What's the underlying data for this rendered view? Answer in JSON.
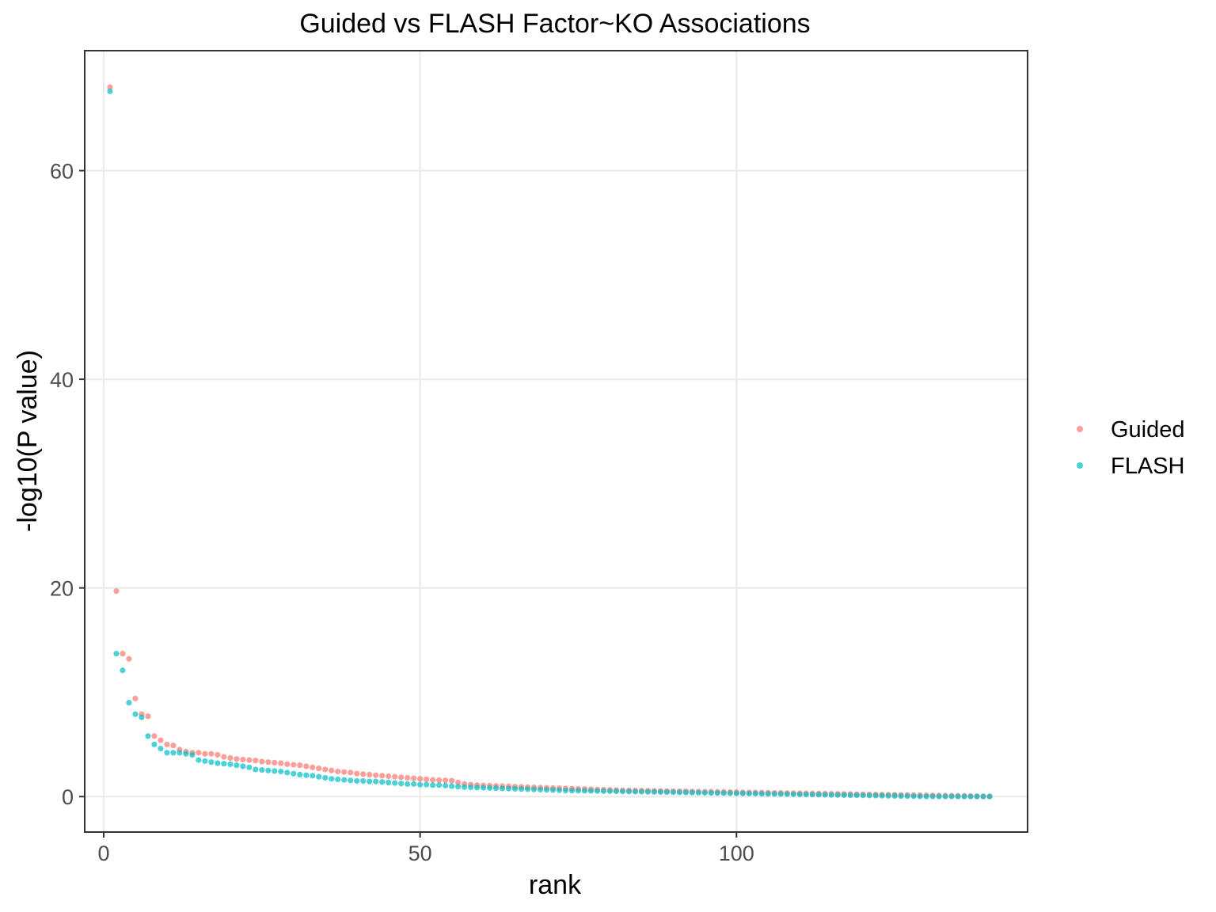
{
  "chart_data": {
    "type": "scatter",
    "title": "Guided vs FLASH Factor~KO Associations",
    "xlabel": "rank",
    "ylabel": "-log10(P value)",
    "xlim": [
      -3,
      146
    ],
    "ylim": [
      -3.4,
      71.5
    ],
    "x_ticks": [
      0,
      50,
      100
    ],
    "y_ticks": [
      0,
      20,
      40,
      60
    ],
    "x_tick_labels": [
      "0",
      "50",
      "100"
    ],
    "y_tick_labels": [
      "0",
      "20",
      "40",
      "60"
    ],
    "grid": true,
    "legend_position": "right",
    "series": [
      {
        "name": "Guided",
        "color": "#F8766D",
        "x": [
          1,
          2,
          3,
          4,
          5,
          6,
          7,
          8,
          9,
          10,
          11,
          12,
          13,
          14,
          15,
          16,
          17,
          18,
          19,
          20,
          21,
          22,
          23,
          24,
          25,
          26,
          27,
          28,
          29,
          30,
          31,
          32,
          33,
          34,
          35,
          36,
          37,
          38,
          39,
          40,
          41,
          42,
          43,
          44,
          45,
          46,
          47,
          48,
          49,
          50,
          51,
          52,
          53,
          54,
          55,
          56,
          57,
          58,
          59,
          60,
          61,
          62,
          63,
          64,
          65,
          66,
          67,
          68,
          69,
          70,
          71,
          72,
          73,
          74,
          75,
          76,
          77,
          78,
          79,
          80,
          81,
          82,
          83,
          84,
          85,
          86,
          87,
          88,
          89,
          90,
          91,
          92,
          93,
          94,
          95,
          96,
          97,
          98,
          99,
          100,
          101,
          102,
          103,
          104,
          105,
          106,
          107,
          108,
          109,
          110,
          111,
          112,
          113,
          114,
          115,
          116,
          117,
          118,
          119,
          120,
          121,
          122,
          123,
          124,
          125,
          126,
          127,
          128,
          129,
          130,
          131,
          132,
          133,
          134,
          135,
          136,
          137,
          138,
          139,
          140
        ],
        "y": [
          68.0,
          19.7,
          13.7,
          13.2,
          9.4,
          7.9,
          7.7,
          5.8,
          5.4,
          5.0,
          4.9,
          4.5,
          4.3,
          4.2,
          4.2,
          4.1,
          4.1,
          4.0,
          3.8,
          3.7,
          3.6,
          3.55,
          3.5,
          3.45,
          3.35,
          3.3,
          3.25,
          3.2,
          3.1,
          3.05,
          3.0,
          2.9,
          2.8,
          2.7,
          2.6,
          2.5,
          2.4,
          2.35,
          2.3,
          2.2,
          2.15,
          2.1,
          2.05,
          2.0,
          1.95,
          1.9,
          1.85,
          1.8,
          1.75,
          1.7,
          1.65,
          1.6,
          1.58,
          1.55,
          1.52,
          1.35,
          1.2,
          1.15,
          1.1,
          1.07,
          1.05,
          1.02,
          1.0,
          0.98,
          0.95,
          0.93,
          0.9,
          0.88,
          0.86,
          0.84,
          0.82,
          0.8,
          0.78,
          0.76,
          0.74,
          0.72,
          0.7,
          0.68,
          0.66,
          0.64,
          0.62,
          0.6,
          0.59,
          0.58,
          0.57,
          0.56,
          0.55,
          0.54,
          0.53,
          0.52,
          0.51,
          0.5,
          0.49,
          0.48,
          0.47,
          0.46,
          0.45,
          0.44,
          0.43,
          0.42,
          0.41,
          0.4,
          0.39,
          0.38,
          0.37,
          0.36,
          0.35,
          0.34,
          0.33,
          0.32,
          0.31,
          0.3,
          0.29,
          0.28,
          0.27,
          0.26,
          0.25,
          0.24,
          0.23,
          0.22,
          0.21,
          0.2,
          0.19,
          0.18,
          0.17,
          0.16,
          0.15,
          0.14,
          0.13,
          0.12,
          0.11,
          0.1,
          0.09,
          0.08,
          0.07,
          0.06,
          0.05,
          0.04,
          0.03,
          0.02
        ]
      },
      {
        "name": "FLASH",
        "color": "#00BFC4",
        "x": [
          1,
          2,
          3,
          4,
          5,
          6,
          7,
          8,
          9,
          10,
          11,
          12,
          13,
          14,
          15,
          16,
          17,
          18,
          19,
          20,
          21,
          22,
          23,
          24,
          25,
          26,
          27,
          28,
          29,
          30,
          31,
          32,
          33,
          34,
          35,
          36,
          37,
          38,
          39,
          40,
          41,
          42,
          43,
          44,
          45,
          46,
          47,
          48,
          49,
          50,
          51,
          52,
          53,
          54,
          55,
          56,
          57,
          58,
          59,
          60,
          61,
          62,
          63,
          64,
          65,
          66,
          67,
          68,
          69,
          70,
          71,
          72,
          73,
          74,
          75,
          76,
          77,
          78,
          79,
          80,
          81,
          82,
          83,
          84,
          85,
          86,
          87,
          88,
          89,
          90,
          91,
          92,
          93,
          94,
          95,
          96,
          97,
          98,
          99,
          100,
          101,
          102,
          103,
          104,
          105,
          106,
          107,
          108,
          109,
          110,
          111,
          112,
          113,
          114,
          115,
          116,
          117,
          118,
          119,
          120,
          121,
          122,
          123,
          124,
          125,
          126,
          127,
          128,
          129,
          130,
          131,
          132,
          133,
          134,
          135,
          136,
          137,
          138,
          139,
          140
        ],
        "y": [
          67.6,
          13.7,
          12.1,
          9.0,
          7.9,
          7.6,
          5.8,
          5.0,
          4.6,
          4.2,
          4.2,
          4.2,
          4.1,
          4.0,
          3.5,
          3.4,
          3.3,
          3.2,
          3.15,
          3.1,
          3.0,
          2.9,
          2.8,
          2.6,
          2.55,
          2.5,
          2.45,
          2.4,
          2.3,
          2.2,
          2.1,
          2.05,
          2.0,
          1.9,
          1.8,
          1.7,
          1.65,
          1.6,
          1.55,
          1.5,
          1.5,
          1.45,
          1.45,
          1.4,
          1.35,
          1.3,
          1.25,
          1.2,
          1.2,
          1.15,
          1.15,
          1.1,
          1.1,
          1.05,
          1.0,
          0.95,
          0.9,
          0.88,
          0.86,
          0.84,
          0.82,
          0.8,
          0.78,
          0.76,
          0.74,
          0.72,
          0.7,
          0.68,
          0.66,
          0.64,
          0.62,
          0.6,
          0.58,
          0.57,
          0.56,
          0.55,
          0.54,
          0.53,
          0.52,
          0.51,
          0.5,
          0.49,
          0.48,
          0.47,
          0.46,
          0.45,
          0.44,
          0.43,
          0.42,
          0.41,
          0.4,
          0.39,
          0.38,
          0.37,
          0.36,
          0.35,
          0.34,
          0.33,
          0.32,
          0.31,
          0.3,
          0.29,
          0.28,
          0.27,
          0.26,
          0.25,
          0.24,
          0.23,
          0.22,
          0.21,
          0.2,
          0.19,
          0.18,
          0.17,
          0.16,
          0.15,
          0.14,
          0.13,
          0.12,
          0.11,
          0.1,
          0.09,
          0.08,
          0.07,
          0.06,
          0.05,
          0.04,
          0.03,
          0.02,
          0.01,
          0.01,
          0.01,
          0.01,
          0.01,
          0.01,
          0.01,
          0.01,
          0.01,
          0.01,
          0.01
        ]
      }
    ]
  }
}
